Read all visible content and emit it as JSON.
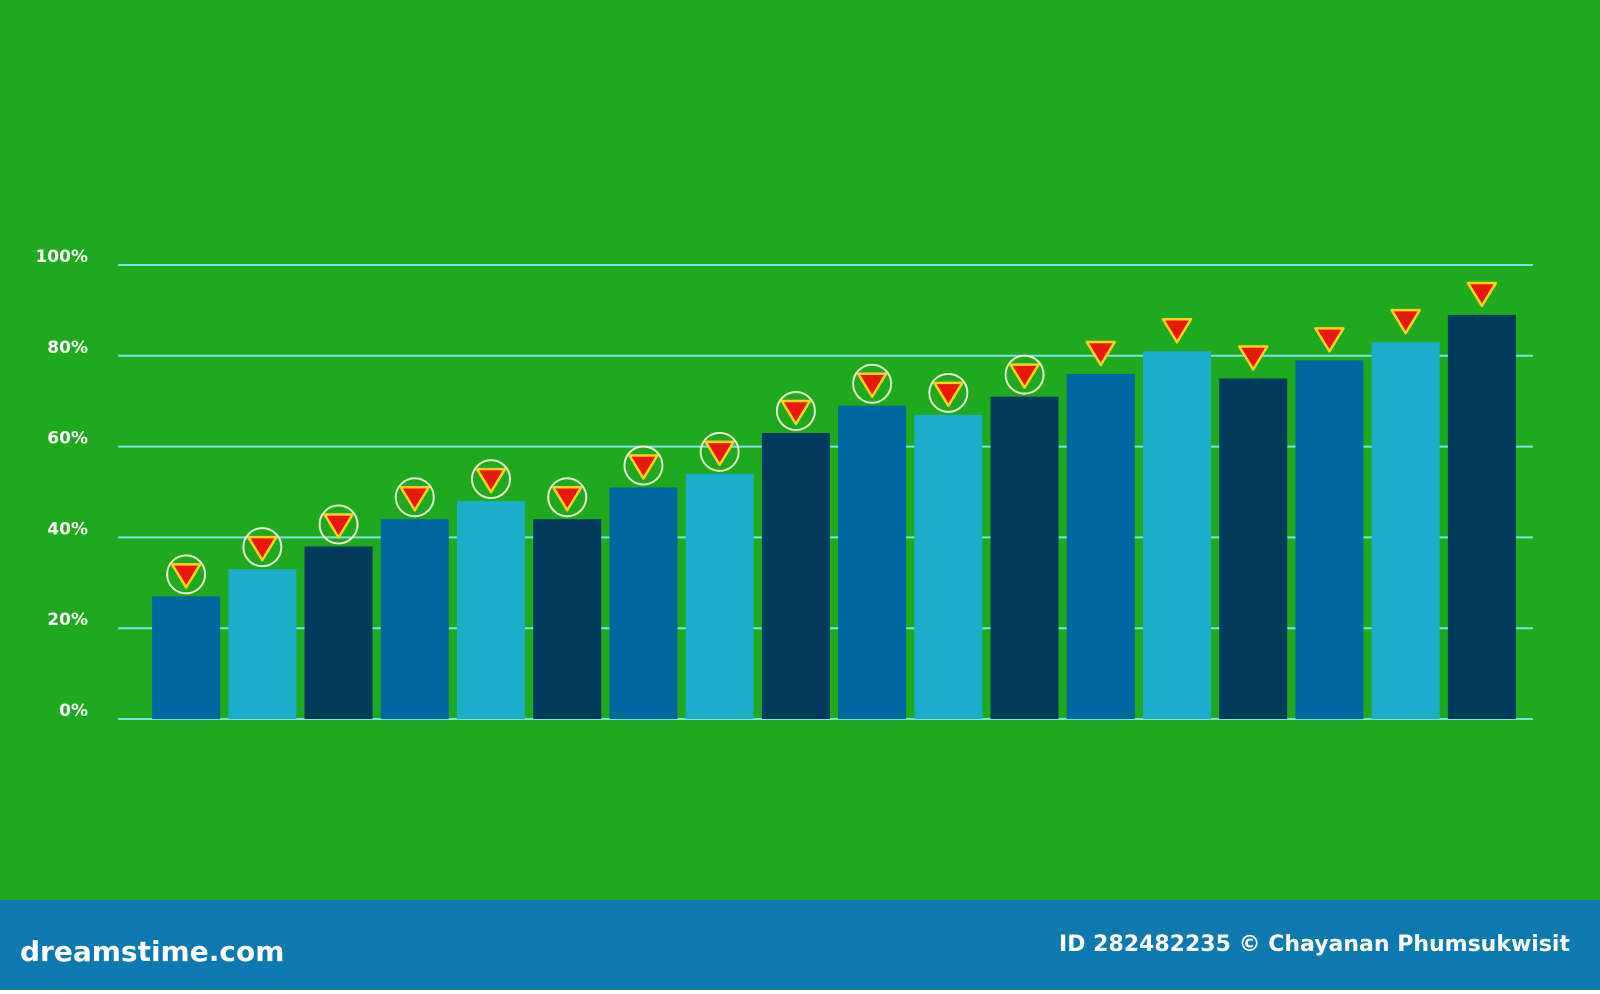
{
  "chart_data": {
    "type": "bar",
    "categories": [
      null,
      null,
      null,
      null,
      null,
      null,
      null,
      null,
      null,
      null,
      null,
      null,
      null,
      null,
      null,
      null,
      null,
      null
    ],
    "values": [
      27,
      33,
      38,
      44,
      48,
      44,
      51,
      54,
      63,
      69,
      67,
      71,
      76,
      81,
      75,
      79,
      83,
      89
    ],
    "colors": [
      "#00679f",
      "#1badc9",
      "#003a5c",
      "#00679f",
      "#1badc9",
      "#003a5c",
      "#00679f",
      "#1badc9",
      "#003a5c",
      "#00679f",
      "#1badc9",
      "#003a5c",
      "#00679f",
      "#1badc9",
      "#003a5c",
      "#00679f",
      "#1badc9",
      "#003a5c"
    ],
    "ylim": [
      0,
      100
    ],
    "yticks": [
      {
        "value": 0,
        "label": "0%"
      },
      {
        "value": 20,
        "label": "20%"
      },
      {
        "value": 40,
        "label": "40%"
      },
      {
        "value": 60,
        "label": "60%"
      },
      {
        "value": 80,
        "label": "80%"
      },
      {
        "value": 100,
        "label": "100%"
      }
    ],
    "grid": true
  },
  "footer": {
    "brand": "dreamstime.com",
    "credit": "ID 282482235 © Chayanan Phumsukwisit"
  }
}
